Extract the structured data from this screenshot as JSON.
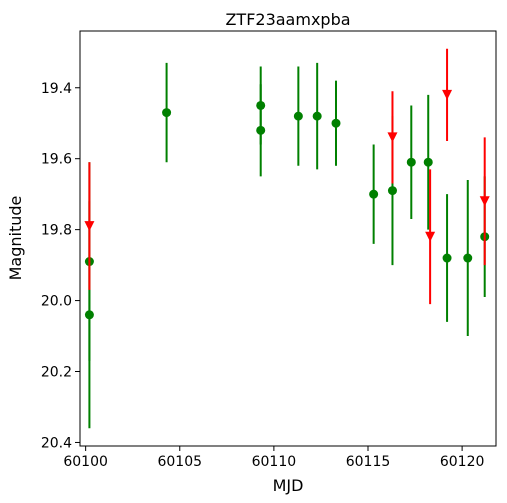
{
  "chart_data": {
    "type": "scatter",
    "title": "ZTF23aamxpba",
    "xlabel": "MJD",
    "ylabel": "Magnitude",
    "xlim": [
      60099.7,
      60121.8
    ],
    "ylim": [
      20.41,
      19.24
    ],
    "y_inverted": true,
    "x_ticks": [
      60100,
      60105,
      60110,
      60115,
      60120
    ],
    "x_tick_labels": [
      "60100",
      "60105",
      "60110",
      "60115",
      "60120"
    ],
    "y_ticks": [
      19.4,
      19.6,
      19.8,
      20.0,
      20.2,
      20.4
    ],
    "y_tick_labels": [
      "19.4",
      "19.6",
      "19.8",
      "20.0",
      "20.2",
      "20.4"
    ],
    "grid": false,
    "legend": "none",
    "series": [
      {
        "marker": "circle",
        "color": "#008000",
        "points": [
          {
            "x": 60100.2,
            "y": 19.89,
            "err": 0.28
          },
          {
            "x": 60100.2,
            "y": 20.04,
            "err": 0.32
          },
          {
            "x": 60104.3,
            "y": 19.47,
            "err": 0.14
          },
          {
            "x": 60109.3,
            "y": 19.45,
            "err": 0.11
          },
          {
            "x": 60109.3,
            "y": 19.52,
            "err": 0.13
          },
          {
            "x": 60111.3,
            "y": 19.48,
            "err": 0.14
          },
          {
            "x": 60112.3,
            "y": 19.48,
            "err": 0.15
          },
          {
            "x": 60113.3,
            "y": 19.5,
            "err": 0.12
          },
          {
            "x": 60115.3,
            "y": 19.7,
            "err": 0.14
          },
          {
            "x": 60116.3,
            "y": 19.69,
            "err": 0.21
          },
          {
            "x": 60117.3,
            "y": 19.61,
            "err": 0.16
          },
          {
            "x": 60118.2,
            "y": 19.61,
            "err": 0.19
          },
          {
            "x": 60119.2,
            "y": 19.88,
            "err": 0.18
          },
          {
            "x": 60120.3,
            "y": 19.88,
            "err": 0.22
          },
          {
            "x": 60121.2,
            "y": 19.82,
            "err": 0.17
          }
        ]
      },
      {
        "marker": "triangle-down",
        "color": "#ff0000",
        "points": [
          {
            "x": 60100.2,
            "y": 19.79,
            "err": 0.18
          },
          {
            "x": 60116.3,
            "y": 19.54,
            "err": 0.13
          },
          {
            "x": 60118.3,
            "y": 19.82,
            "err": 0.19
          },
          {
            "x": 60119.2,
            "y": 19.42,
            "err": 0.13
          },
          {
            "x": 60121.2,
            "y": 19.72,
            "err": 0.18
          }
        ]
      }
    ]
  }
}
